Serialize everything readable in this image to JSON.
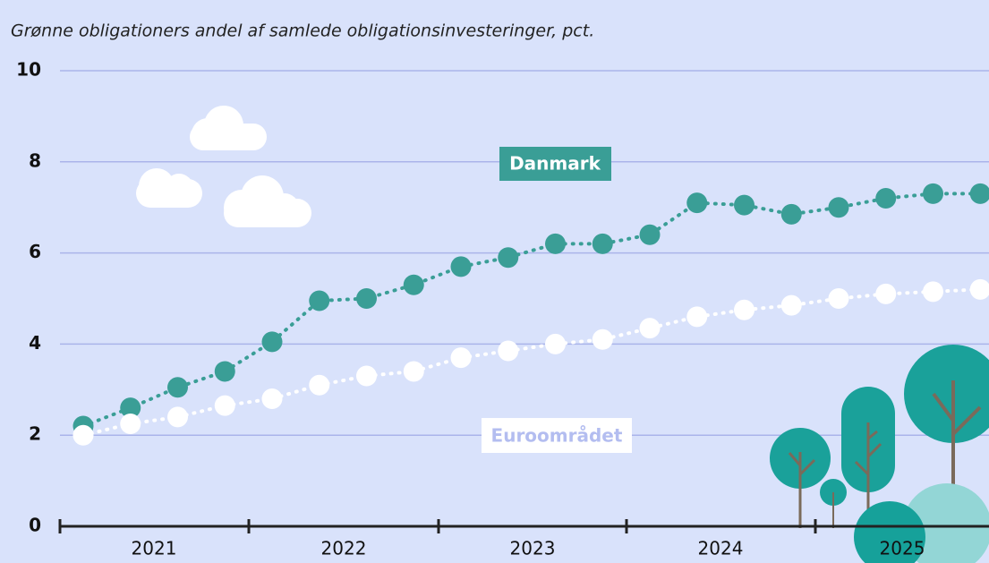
{
  "chart_data": {
    "type": "line",
    "title": "Grønne obligationers andel af samlede obligationsinvesteringer, pct.",
    "categories": [
      null,
      null,
      null,
      null,
      null,
      null,
      null,
      null,
      null,
      null,
      null,
      null,
      null,
      null,
      null,
      null,
      null,
      null,
      null,
      null
    ],
    "year_labels": [
      "2021",
      "2022",
      "2023",
      "2024",
      "2025"
    ],
    "series": [
      {
        "name": "Danmark",
        "color": "#3a9e96",
        "values": [
          2.2,
          2.6,
          3.05,
          3.4,
          4.05,
          4.95,
          5.0,
          5.3,
          5.7,
          5.9,
          6.2,
          6.2,
          6.4,
          7.1,
          7.05,
          6.85,
          7.0,
          7.2,
          7.3,
          7.3
        ]
      },
      {
        "name": "Euroområdet",
        "color": "#ffffff",
        "values": [
          2.0,
          2.25,
          2.4,
          2.65,
          2.8,
          3.1,
          3.3,
          3.4,
          3.7,
          3.85,
          4.0,
          4.1,
          4.35,
          4.6,
          4.75,
          4.85,
          5.0,
          5.1,
          5.15,
          5.2
        ]
      }
    ],
    "ylim": [
      0,
      10
    ],
    "yticks": [
      0,
      2,
      4,
      6,
      8,
      10
    ],
    "grid": true
  }
}
